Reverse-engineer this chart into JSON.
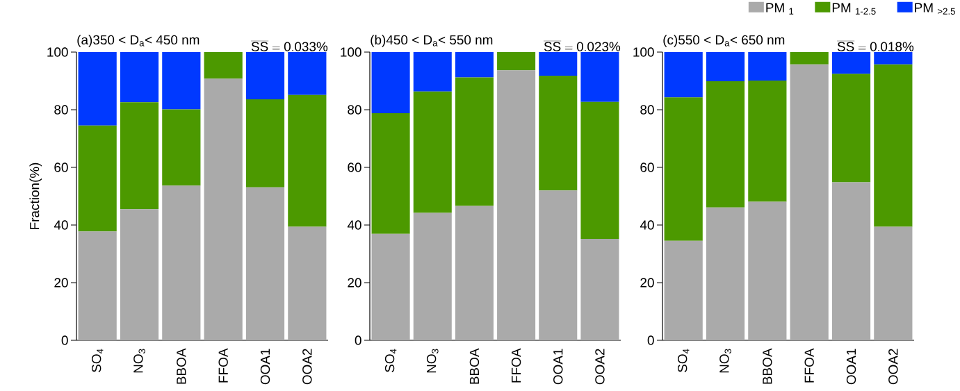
{
  "chart_data": [
    {
      "type": "bar",
      "stacked": true,
      "title": "(a)350 < D$_{a}$< 450 nm",
      "ylabel": "Fraction(%)",
      "annotations": [
        "\\mathrm{\\overline{SS}=0.033\\%}"
      ],
      "categories": [
        "SO$_{4}$",
        "NO$_{3}$",
        "BBOA",
        "FFOA",
        "OOA1",
        "OOA2"
      ],
      "ylim": [
        0,
        100
      ],
      "yticks": [
        0,
        20,
        40,
        60,
        80,
        100
      ],
      "series": [
        {
          "color": "#aaaaaa",
          "values": [
            37.8,
            45.5,
            53.7,
            90.8,
            53.1,
            39.4
          ]
        },
        {
          "color": "#4c9900",
          "values": [
            36.7,
            37.1,
            26.4,
            9.2,
            30.5,
            45.7
          ]
        },
        {
          "color": "#0039ff",
          "values": [
            25.5,
            17.4,
            19.9,
            0,
            16.4,
            14.9
          ]
        }
      ]
    },
    {
      "type": "bar",
      "stacked": true,
      "title": "(b)450 < D$_{a}$< 550 nm",
      "annotations": [
        "\\mathrm{\\overline{SS}=0.023\\%}"
      ],
      "categories": [
        "SO$_{4}$",
        "NO$_{3}$",
        "BBOA",
        "FFOA",
        "OOA1",
        "OOA2"
      ],
      "ylim": [
        0,
        100
      ],
      "yticks": [
        0,
        20,
        40,
        60,
        80,
        100
      ],
      "series": [
        {
          "color": "#aaaaaa",
          "values": [
            36.9,
            44.2,
            46.6,
            93.7,
            52.0,
            35.2
          ]
        },
        {
          "color": "#4c9900",
          "values": [
            41.9,
            42.1,
            44.6,
            6.3,
            39.8,
            47.5
          ]
        },
        {
          "color": "#0039ff",
          "values": [
            21.2,
            13.7,
            8.8,
            0,
            8.2,
            17.3
          ]
        }
      ]
    },
    {
      "type": "bar",
      "stacked": true,
      "title": "(c)550 < D$_{a}$< 650 nm",
      "annotations": [
        "\\mathrm{\\overline{SS}=0.018\\%}"
      ],
      "categories": [
        "SO$_{4}$",
        "NO$_{3}$",
        "BBOA",
        "FFOA",
        "OOA1",
        "OOA2"
      ],
      "ylim": [
        0,
        100
      ],
      "yticks": [
        0,
        20,
        40,
        60,
        80,
        100
      ],
      "legend": "top right",
      "series": [
        {
          "name": "PM $_{1}$",
          "color": "#aaaaaa",
          "values": [
            34.5,
            46.1,
            48.1,
            95.7,
            54.8,
            39.4
          ]
        },
        {
          "name": "PM $_{1-2.5}$",
          "color": "#4c9900",
          "values": [
            49.8,
            43.8,
            42.0,
            4.3,
            37.7,
            56.3
          ]
        },
        {
          "name": "PM $_{>2.5}$",
          "color": "#0039ff",
          "values": [
            15.7,
            10.1,
            9.9,
            0,
            7.5,
            4.3
          ]
        }
      ]
    }
  ]
}
